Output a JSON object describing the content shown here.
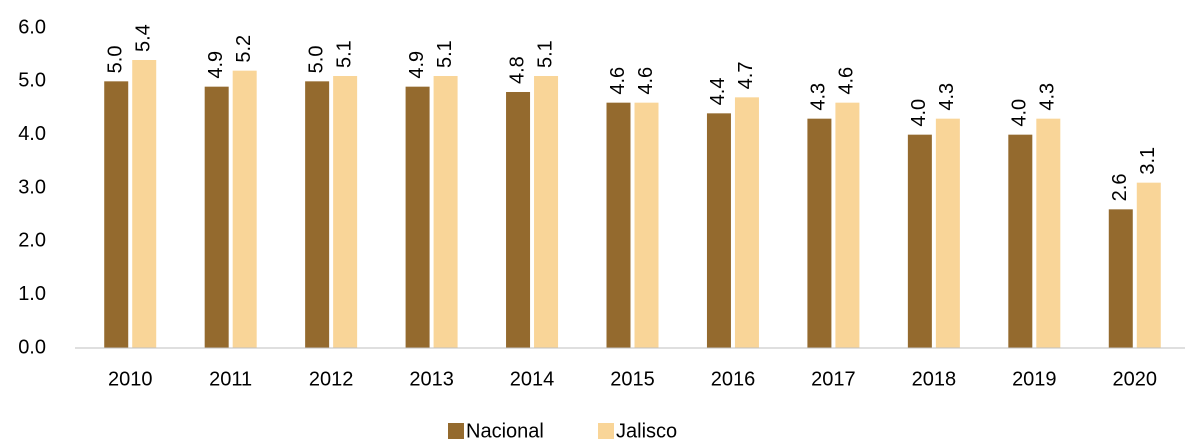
{
  "chart_data": {
    "type": "bar",
    "categories": [
      "2010",
      "2011",
      "2012",
      "2013",
      "2014",
      "2015",
      "2016",
      "2017",
      "2018",
      "2019",
      "2020"
    ],
    "series": [
      {
        "name": "Nacional",
        "color": "#946a2e",
        "values": [
          5.0,
          4.9,
          5.0,
          4.9,
          4.8,
          4.6,
          4.4,
          4.3,
          4.0,
          4.0,
          2.6
        ],
        "value_labels": [
          "5.0",
          "4.9",
          "5.0",
          "4.9",
          "4.8",
          "4.6",
          "4.4",
          "4.3",
          "4.0",
          "4.0",
          "2.6"
        ]
      },
      {
        "name": "Jalisco",
        "color": "#f9d598",
        "values": [
          5.4,
          5.2,
          5.1,
          5.1,
          5.1,
          4.6,
          4.7,
          4.6,
          4.3,
          4.3,
          3.1
        ],
        "value_labels": [
          "5.4",
          "5.2",
          "5.1",
          "5.1",
          "5.1",
          "4.6",
          "4.7",
          "4.6",
          "4.3",
          "4.3",
          "3.1"
        ]
      }
    ],
    "ylim": [
      0,
      6
    ],
    "yticks": [
      {
        "value": 0,
        "label": "0.0"
      },
      {
        "value": 1,
        "label": "1.0"
      },
      {
        "value": 2,
        "label": "2.0"
      },
      {
        "value": 3,
        "label": "3.0"
      },
      {
        "value": 4,
        "label": "4.0"
      },
      {
        "value": 5,
        "label": "5.0"
      },
      {
        "value": 6,
        "label": "6.0"
      }
    ],
    "grid": false,
    "legend": "bottom"
  }
}
